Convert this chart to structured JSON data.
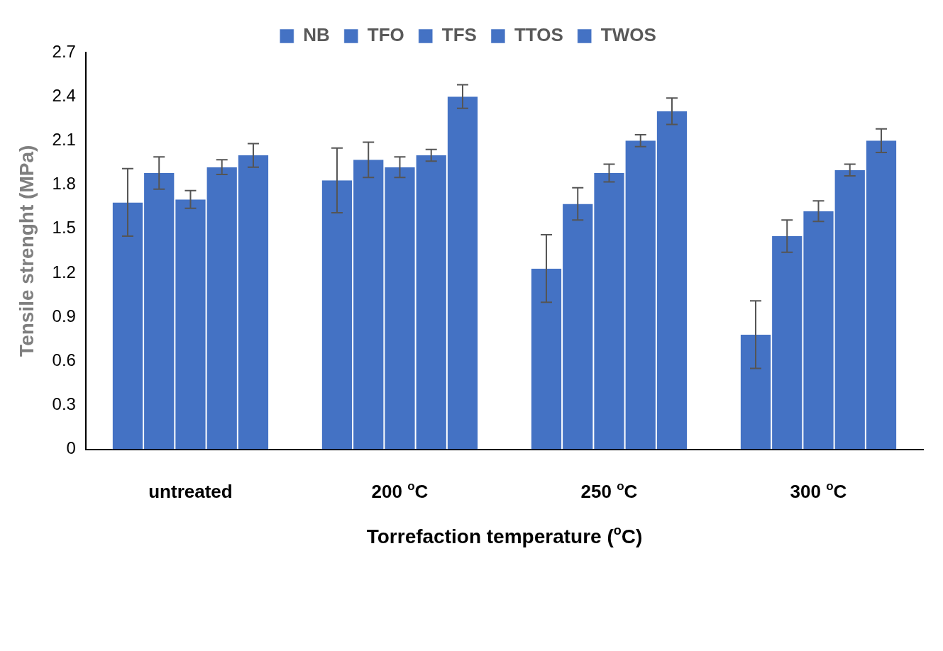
{
  "chart_data": {
    "type": "bar",
    "xlabel": "Torrefaction temperature ($^{o}$C)",
    "ylabel": "Tensile strenght (MPa)",
    "categories": [
      "untreated",
      "200 $^{o}$C",
      "250 $^{o}$C",
      "300 $^{o}$C"
    ],
    "series": [
      {
        "name": "NB",
        "color": "#4472c4",
        "values": [
          1.68,
          1.83,
          1.23,
          0.78
        ],
        "errors": [
          0.23,
          0.22,
          0.23,
          0.23
        ]
      },
      {
        "name": "TFO",
        "color": "#4472c4",
        "values": [
          1.88,
          1.97,
          1.67,
          1.45
        ],
        "errors": [
          0.11,
          0.12,
          0.11,
          0.11
        ]
      },
      {
        "name": "TFS",
        "color": "#4472c4",
        "values": [
          1.7,
          1.92,
          1.88,
          1.62
        ],
        "errors": [
          0.06,
          0.07,
          0.06,
          0.07
        ]
      },
      {
        "name": "TTOS",
        "color": "#4472c4",
        "values": [
          1.92,
          2.0,
          2.1,
          1.9
        ],
        "errors": [
          0.05,
          0.04,
          0.04,
          0.04
        ]
      },
      {
        "name": "TWOS",
        "color": "#4472c4",
        "values": [
          2.0,
          2.4,
          2.3,
          2.1
        ],
        "errors": [
          0.08,
          0.08,
          0.09,
          0.08
        ]
      }
    ],
    "ylim": [
      0,
      2.7
    ],
    "yticks": [
      0,
      0.3,
      0.6,
      0.9,
      1.2,
      1.5,
      1.8,
      2.1,
      2.4,
      2.7
    ],
    "grid": false,
    "legend": "top"
  }
}
